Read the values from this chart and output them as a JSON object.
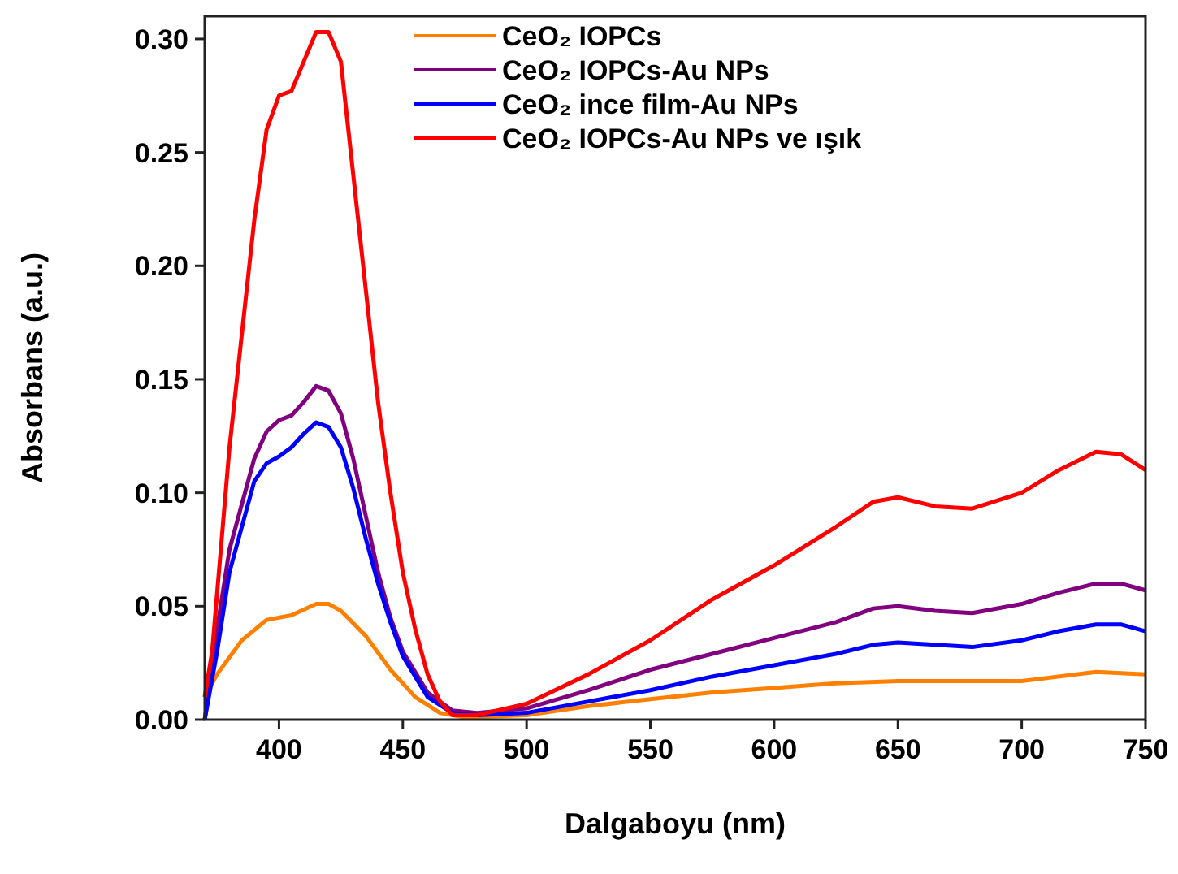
{
  "chart_data": {
    "type": "line",
    "xlabel": "Dalgaboyu (nm)",
    "ylabel": "Absorbans (a.u.)",
    "xlim": [
      370,
      750
    ],
    "ylim": [
      0,
      0.31
    ],
    "xticks": [
      400,
      450,
      500,
      550,
      600,
      650,
      700,
      750
    ],
    "yticks": [
      {
        "value": 0,
        "label": "0.00"
      },
      {
        "value": 0.05,
        "label": "0.05"
      },
      {
        "value": 0.1,
        "label": "0.10"
      },
      {
        "value": 0.15,
        "label": "0.15"
      },
      {
        "value": 0.2,
        "label": "0.20"
      },
      {
        "value": 0.25,
        "label": "0.25"
      },
      {
        "value": 0.3,
        "label": "0.30"
      }
    ],
    "grid": false,
    "legend": "top right",
    "line_style": "solid",
    "series": [
      {
        "name": "CeO₂ IOPCs",
        "color": "#ff8000",
        "x": [
          370,
          375,
          385,
          395,
          405,
          415,
          420,
          425,
          435,
          445,
          455,
          465,
          475,
          500,
          525,
          550,
          575,
          600,
          625,
          650,
          700,
          730,
          750
        ],
        "values": [
          0.01,
          0.02,
          0.035,
          0.044,
          0.046,
          0.051,
          0.051,
          0.048,
          0.037,
          0.022,
          0.01,
          0.003,
          0.001,
          0.002,
          0.006,
          0.009,
          0.012,
          0.014,
          0.016,
          0.017,
          0.017,
          0.021,
          0.02
        ]
      },
      {
        "name": "CeO₂ IOPCs-Au NPs",
        "color": "#800080",
        "x": [
          370,
          375,
          380,
          390,
          395,
          400,
          405,
          410,
          415,
          420,
          425,
          430,
          435,
          440,
          445,
          450,
          460,
          470,
          480,
          500,
          525,
          550,
          575,
          600,
          625,
          640,
          650,
          665,
          680,
          700,
          715,
          730,
          740,
          750
        ],
        "values": [
          0,
          0.04,
          0.075,
          0.115,
          0.127,
          0.132,
          0.134,
          0.14,
          0.147,
          0.145,
          0.135,
          0.115,
          0.09,
          0.065,
          0.045,
          0.03,
          0.012,
          0.004,
          0.003,
          0.005,
          0.013,
          0.022,
          0.029,
          0.036,
          0.043,
          0.049,
          0.05,
          0.048,
          0.047,
          0.051,
          0.056,
          0.06,
          0.06,
          0.057
        ]
      },
      {
        "name": "CeO₂ ince film-Au NPs",
        "color": "#0000ff",
        "x": [
          370,
          375,
          380,
          390,
          395,
          400,
          405,
          410,
          415,
          420,
          425,
          430,
          435,
          440,
          445,
          450,
          460,
          470,
          480,
          500,
          525,
          550,
          575,
          600,
          625,
          640,
          650,
          665,
          680,
          700,
          715,
          730,
          740,
          750
        ],
        "values": [
          0,
          0.03,
          0.065,
          0.105,
          0.113,
          0.116,
          0.12,
          0.126,
          0.131,
          0.129,
          0.12,
          0.102,
          0.08,
          0.06,
          0.043,
          0.028,
          0.01,
          0.003,
          0.002,
          0.003,
          0.008,
          0.013,
          0.019,
          0.024,
          0.029,
          0.033,
          0.034,
          0.033,
          0.032,
          0.035,
          0.039,
          0.042,
          0.042,
          0.039
        ]
      },
      {
        "name": "CeO₂ IOPCs-Au NPs ve ışık",
        "color": "#ff0000",
        "x": [
          370,
          373,
          380,
          390,
          395,
          400,
          405,
          410,
          415,
          420,
          425,
          430,
          435,
          440,
          445,
          450,
          455,
          460,
          465,
          470,
          480,
          500,
          525,
          550,
          575,
          600,
          625,
          640,
          650,
          665,
          680,
          700,
          715,
          730,
          740,
          750
        ],
        "values": [
          0.01,
          0.03,
          0.12,
          0.22,
          0.26,
          0.275,
          0.277,
          0.29,
          0.303,
          0.303,
          0.29,
          0.24,
          0.19,
          0.14,
          0.1,
          0.065,
          0.04,
          0.02,
          0.008,
          0.002,
          0.002,
          0.007,
          0.02,
          0.035,
          0.053,
          0.068,
          0.085,
          0.096,
          0.098,
          0.094,
          0.093,
          0.1,
          0.11,
          0.118,
          0.117,
          0.11
        ]
      }
    ]
  }
}
